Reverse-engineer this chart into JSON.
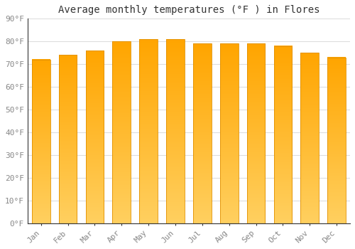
{
  "title": "Average monthly temperatures (°F ) in Flores",
  "months": [
    "Jan",
    "Feb",
    "Mar",
    "Apr",
    "May",
    "Jun",
    "Jul",
    "Aug",
    "Sep",
    "Oct",
    "Nov",
    "Dec"
  ],
  "values": [
    72,
    74,
    76,
    80,
    81,
    81,
    79,
    79,
    79,
    78,
    75,
    73
  ],
  "bar_color_top": "#FFA500",
  "bar_color_bottom": "#FFD060",
  "bar_edge_color": "#E09000",
  "background_color": "#FFFFFF",
  "grid_color": "#DDDDDD",
  "ylim": [
    0,
    90
  ],
  "yticks": [
    0,
    10,
    20,
    30,
    40,
    50,
    60,
    70,
    80,
    90
  ],
  "ytick_labels": [
    "0°F",
    "10°F",
    "20°F",
    "30°F",
    "40°F",
    "50°F",
    "60°F",
    "70°F",
    "80°F",
    "90°F"
  ],
  "title_fontsize": 10,
  "tick_fontsize": 8,
  "font_family": "monospace",
  "tick_color": "#888888",
  "bar_width": 0.68
}
